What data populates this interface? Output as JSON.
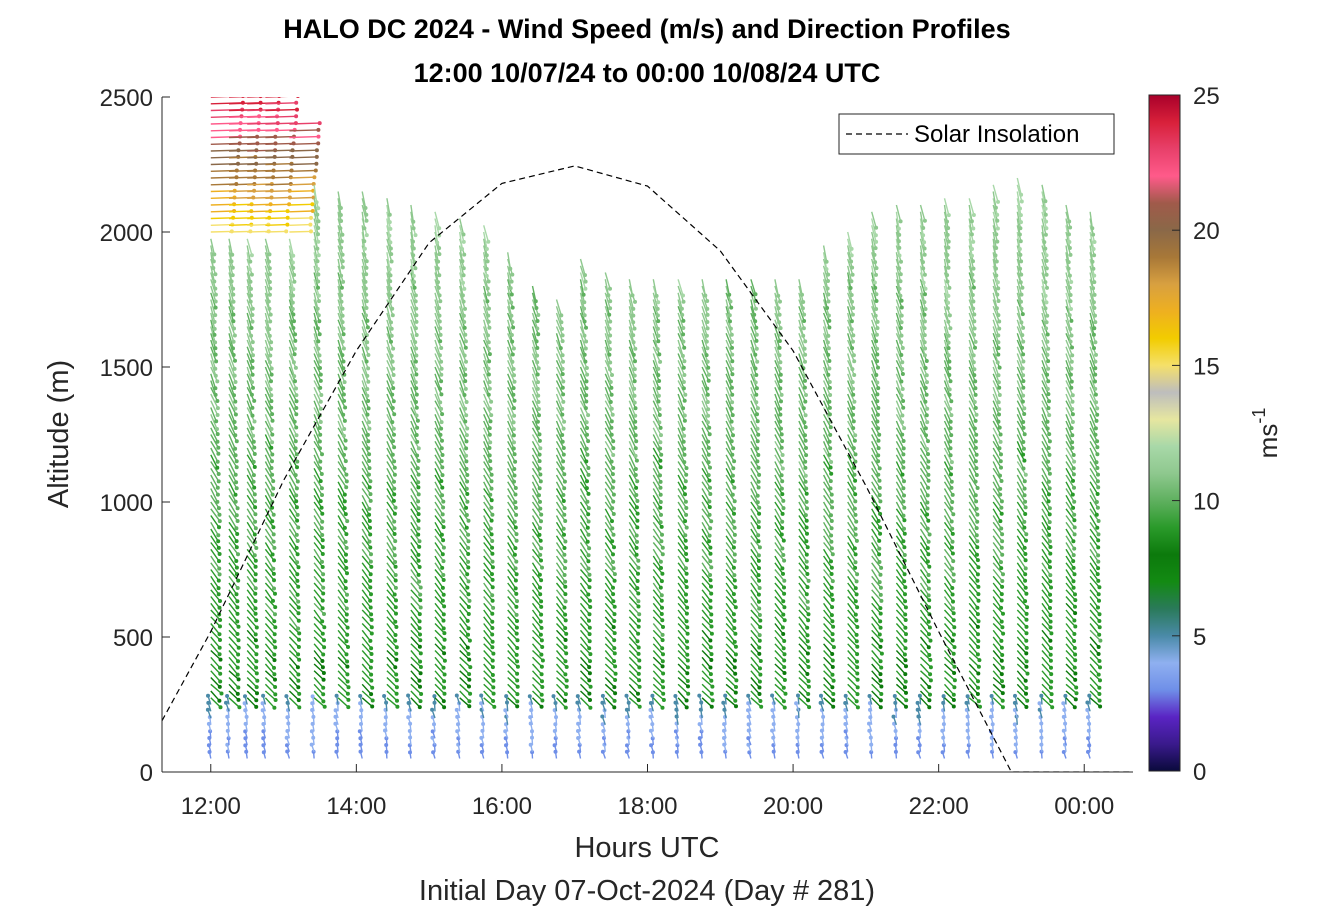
{
  "chart_data": {
    "type": "quiver",
    "title": "HALO DC 2024 - Wind Speed (m/s) and Direction Profiles",
    "subtitle": "12:00 10/07/24 to 00:00 10/08/24  UTC",
    "xlabel": "Hours UTC",
    "xlabel2": "Initial Day 07-Oct-2024 (Day # 281)",
    "ylabel": "Altitude (m)",
    "xlim": [
      11.33,
      24.67
    ],
    "ylim": [
      0,
      2500
    ],
    "x_ticks": [
      12,
      14,
      16,
      18,
      20,
      22,
      24
    ],
    "x_tick_labels": [
      "12:00",
      "14:00",
      "16:00",
      "18:00",
      "20:00",
      "22:00",
      "00:00"
    ],
    "y_ticks": [
      0,
      500,
      1000,
      1500,
      2000,
      2500
    ],
    "y_tick_labels": [
      "0",
      "500",
      "1000",
      "1500",
      "2000",
      "2500"
    ],
    "colorbar": {
      "label": "ms",
      "label_exponent": "-1",
      "range": [
        0,
        25
      ],
      "ticks": [
        0,
        5,
        10,
        15,
        20,
        25
      ],
      "tick_labels": [
        "0",
        "5",
        "10",
        "15",
        "20",
        "25"
      ],
      "colors": [
        "#0a0a3c",
        "#3a1a8c",
        "#5a24c4",
        "#6f8fe8",
        "#8fb0f0",
        "#4a8aa8",
        "#2a7a5a",
        "#138a13",
        "#0c7a0c",
        "#2a9a2a",
        "#5fb05f",
        "#8ec88e",
        "#a8d8a8",
        "#e6e6a0",
        "#bdbdbd",
        "#f5e06a",
        "#f2cc00",
        "#eeb020",
        "#d8a040",
        "#a87838",
        "#8a6848",
        "#a05a4a",
        "#ff5a8a",
        "#e8406a",
        "#d8203a",
        "#a8002a"
      ]
    },
    "legend": {
      "entries": [
        "Solar Insolation"
      ],
      "position": "top-right"
    },
    "solar_insolation": {
      "style": "dashed",
      "color": "#000000",
      "x": [
        11.33,
        12.0,
        13.0,
        14.0,
        15.0,
        16.0,
        17.0,
        18.0,
        19.0,
        20.0,
        21.0,
        22.0,
        22.5,
        23.0,
        24.67
      ],
      "y": [
        190,
        520,
        1080,
        1560,
        1960,
        2180,
        2245,
        2170,
        1930,
        1560,
        1060,
        520,
        260,
        0,
        0
      ]
    },
    "profiles": {
      "times": [
        12.0,
        12.25,
        12.5,
        12.75,
        13.08,
        13.42,
        13.75,
        14.08,
        14.42,
        14.75,
        15.08,
        15.42,
        15.75,
        16.08,
        16.42,
        16.75,
        17.08,
        17.42,
        17.75,
        18.08,
        18.42,
        18.75,
        19.08,
        19.42,
        19.75,
        20.08,
        20.42,
        20.75,
        21.08,
        21.42,
        21.75,
        22.08,
        22.42,
        22.75,
        23.08,
        23.42,
        23.75,
        24.08
      ],
      "top_altitude_m": [
        2500,
        2500,
        2500,
        2500,
        2400,
        2190,
        2170,
        2150,
        2130,
        2100,
        2080,
        2050,
        2040,
        1940,
        1800,
        1760,
        1900,
        1860,
        1840,
        1840,
        1840,
        1840,
        1840,
        1840,
        1840,
        1840,
        1960,
        2000,
        2090,
        2100,
        2120,
        2130,
        2140,
        2180,
        2200,
        2180,
        2120,
        2090
      ],
      "altitude_step_m": 25,
      "low_level_wind": "southerly to southwesterly, 2-5 m/s below 250 m",
      "mid_level_wind": "northwesterly, 7-12 m/s",
      "upper_level_wind": "westerly, 14-20 m/s above 2000 m before 13:00"
    }
  }
}
